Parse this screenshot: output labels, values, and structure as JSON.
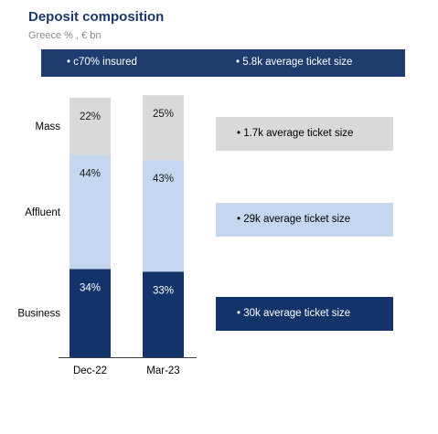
{
  "header": {
    "title": "Deposit composition",
    "subtitle": "Greece % , € bn"
  },
  "banner": {
    "items": [
      "•  c70% insured",
      "•  5.8k average ticket size"
    ]
  },
  "callouts": [
    "•  1.7k average ticket size",
    "•  29k average ticket size",
    "•  30k average ticket size"
  ],
  "colors": {
    "mass": "#d9d9d9",
    "affluent": "#c5d7ef",
    "business": "#13346a",
    "banner": "#1f3c6e",
    "title": "#1b3a6b"
  },
  "chart_data": {
    "type": "bar",
    "stacked": true,
    "categories": [
      "Dec-22",
      "Mar-23"
    ],
    "series": [
      {
        "name": "Business",
        "values": [
          34,
          33
        ],
        "labels": [
          "34%",
          "33%"
        ]
      },
      {
        "name": "Affluent",
        "values": [
          44,
          43
        ],
        "labels": [
          "44%",
          "43%"
        ]
      },
      {
        "name": "Mass",
        "values": [
          22,
          25
        ],
        "labels": [
          "22%",
          "25%"
        ]
      }
    ],
    "ylim": [
      0,
      100
    ],
    "grid": false
  }
}
